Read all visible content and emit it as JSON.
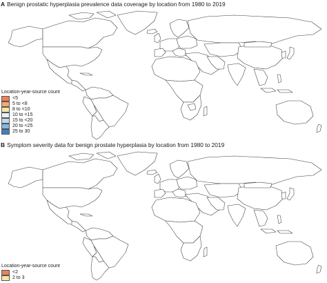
{
  "colors": {
    "lt5": "#ef7f5a",
    "5to8": "#f6aa6c",
    "8to10": "#f6e7a5",
    "10to15": "#e8f2f6",
    "15to20": "#bcdbeb",
    "20to25": "#86b7dc",
    "25to30": "#3f7ec4",
    "b_lt2": "#ef7f5a",
    "b_2to3": "#f6e7a5",
    "nodata": "#ffffff"
  },
  "panel_a": {
    "letter": "A",
    "title": "Benign prostatic hyperplasia prevalence data coverage by location from 1980 to 2019",
    "legend_title": "Location-year-source count",
    "legend": [
      {
        "label": "<5",
        "color": "#ef7f5a"
      },
      {
        "label": "5 to <8",
        "color": "#f6aa6c"
      },
      {
        "label": "8 to <10",
        "color": "#f6e7a5"
      },
      {
        "label": "10 to <15",
        "color": "#e8f2f6"
      },
      {
        "label": "15 to <20",
        "color": "#bcdbeb"
      },
      {
        "label": "20 to <25",
        "color": "#86b7dc"
      },
      {
        "label": "25 to 30",
        "color": "#3f7ec4"
      }
    ]
  },
  "panel_b": {
    "letter": "B",
    "title": "Symptom severity data for benign prostate hyperplasia by location from 1980 to 2019",
    "legend_title": "Location-year-source count",
    "legend": [
      {
        "label": "<2",
        "color": "#ef7f5a"
      },
      {
        "label": "2 to 3",
        "color": "#f6e7a5"
      }
    ]
  }
}
